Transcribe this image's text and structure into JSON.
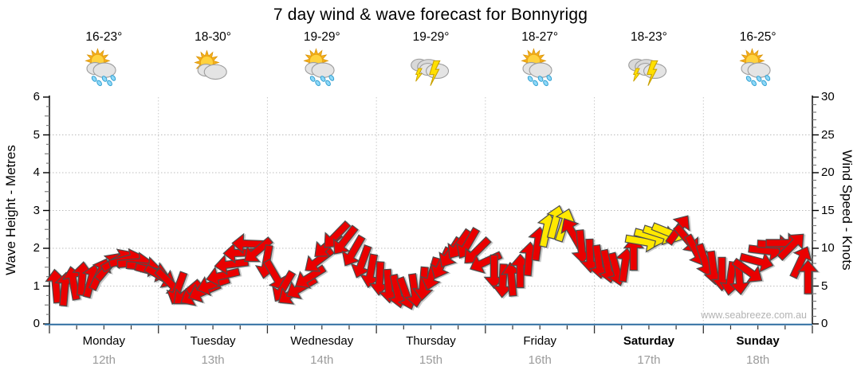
{
  "title": "7 day wind & wave forecast for Bonnyrigg",
  "watermark": "www.seabreeze.com.au",
  "left_axis": {
    "label": "Wave Height - Metres",
    "ticks": [
      "0",
      "1",
      "2",
      "3",
      "4",
      "5",
      "6"
    ]
  },
  "right_axis": {
    "label": "Wind Speed - Knots",
    "ticks": [
      "0",
      "5",
      "10",
      "15",
      "20",
      "25",
      "30"
    ]
  },
  "forecast_days": [
    {
      "name": "Monday",
      "date": "12th",
      "temp": "16-23°",
      "icon": "sun-cloud-rain",
      "bold": false
    },
    {
      "name": "Tuesday",
      "date": "13th",
      "temp": "18-30°",
      "icon": "sun-cloud",
      "bold": false
    },
    {
      "name": "Wednesday",
      "date": "14th",
      "temp": "19-29°",
      "icon": "sun-cloud-rain",
      "bold": false
    },
    {
      "name": "Thursday",
      "date": "15th",
      "temp": "19-29°",
      "icon": "storm",
      "bold": false
    },
    {
      "name": "Friday",
      "date": "16th",
      "temp": "18-27°",
      "icon": "sun-cloud-rain",
      "bold": false
    },
    {
      "name": "Saturday",
      "date": "17th",
      "temp": "18-23°",
      "icon": "storm",
      "bold": true
    },
    {
      "name": "Sunday",
      "date": "18th",
      "temp": "16-25°",
      "icon": "sun-cloud-rain",
      "bold": true
    }
  ],
  "colors": {
    "arrow_red": "#ea0000",
    "arrow_yellow": "#ffe800",
    "arrow_outline": "#4d4d4d",
    "bottom_axis_blue": "#2e6da0",
    "grid_gray": "#bcbcbc",
    "date_gray": "#9b9b9b",
    "watermark_gray": "#b3b3b3"
  },
  "chart_data": {
    "type": "scatter",
    "title": "7 day wind & wave forecast for Bonnyrigg",
    "x_categories": [
      "Monday 12th",
      "Tuesday 13th",
      "Wednesday 14th",
      "Thursday 15th",
      "Friday 16th",
      "Saturday 17th",
      "Sunday 18th"
    ],
    "y_left": {
      "label": "Wave Height - Metres",
      "range": [
        0,
        6
      ],
      "major_step": 1,
      "minor_step": 0.25
    },
    "y_right": {
      "label": "Wind Speed - Knots",
      "range": [
        0,
        30
      ],
      "major_step": 5,
      "minor_step": 1
    },
    "grid": true,
    "legend": "none",
    "series_note": "Wind speed/direction arrows; t_days is time from Monday 00:00 (0-7), dir_deg is compass direction arrow points (0=up/N, clockwise), color r=red (normal) y=yellow (stronger wind)",
    "wind_arrows": {
      "fields": [
        "t_days",
        "knots",
        "dir_deg",
        "color"
      ],
      "points": [
        [
          0.06,
          5.0,
          355,
          "r"
        ],
        [
          0.14,
          4.6,
          5,
          "r"
        ],
        [
          0.22,
          5.4,
          350,
          "r"
        ],
        [
          0.3,
          6.0,
          5,
          "r"
        ],
        [
          0.38,
          5.7,
          15,
          "r"
        ],
        [
          0.46,
          6.6,
          25,
          "r"
        ],
        [
          0.54,
          7.6,
          40,
          "r"
        ],
        [
          0.62,
          8.4,
          60,
          "r"
        ],
        [
          0.7,
          8.5,
          75,
          "r"
        ],
        [
          0.78,
          8.1,
          85,
          "r"
        ],
        [
          0.86,
          7.6,
          95,
          "r"
        ],
        [
          0.94,
          7.0,
          105,
          "r"
        ],
        [
          1.02,
          6.3,
          120,
          "r"
        ],
        [
          1.1,
          5.5,
          135,
          "r"
        ],
        [
          1.18,
          4.7,
          200,
          "r"
        ],
        [
          1.26,
          4.1,
          230,
          "r"
        ],
        [
          1.34,
          3.9,
          240,
          "r"
        ],
        [
          1.42,
          4.3,
          247,
          "r"
        ],
        [
          1.5,
          5.2,
          252,
          "r"
        ],
        [
          1.59,
          6.4,
          257,
          "r"
        ],
        [
          1.67,
          7.9,
          263,
          "r"
        ],
        [
          1.75,
          9.4,
          268,
          "r"
        ],
        [
          1.83,
          10.6,
          272,
          "r"
        ],
        [
          1.91,
          9.7,
          230,
          "r"
        ],
        [
          1.99,
          8.2,
          190,
          "r"
        ],
        [
          2.07,
          6.4,
          150,
          "r"
        ],
        [
          2.15,
          4.9,
          210,
          "r"
        ],
        [
          2.23,
          4.1,
          235,
          "r"
        ],
        [
          2.31,
          4.8,
          240,
          "r"
        ],
        [
          2.39,
          6.2,
          238,
          "r"
        ],
        [
          2.47,
          8.4,
          233,
          "r"
        ],
        [
          2.55,
          10.4,
          228,
          "r"
        ],
        [
          2.63,
          11.7,
          224,
          "r"
        ],
        [
          2.71,
          11.0,
          218,
          "r"
        ],
        [
          2.79,
          9.6,
          210,
          "r"
        ],
        [
          2.87,
          8.2,
          200,
          "r"
        ],
        [
          2.95,
          7.0,
          190,
          "r"
        ],
        [
          3.03,
          6.0,
          183,
          "r"
        ],
        [
          3.11,
          5.0,
          176,
          "r"
        ],
        [
          3.19,
          4.3,
          168,
          "r"
        ],
        [
          3.27,
          4.0,
          160,
          "r"
        ],
        [
          3.35,
          4.4,
          172,
          "r"
        ],
        [
          3.43,
          5.3,
          185,
          "r"
        ],
        [
          3.51,
          6.6,
          196,
          "r"
        ],
        [
          3.6,
          8.0,
          205,
          "r"
        ],
        [
          3.68,
          9.4,
          212,
          "r"
        ],
        [
          3.76,
          10.5,
          215,
          "r"
        ],
        [
          3.84,
          10.6,
          210,
          "r"
        ],
        [
          3.92,
          9.6,
          225,
          "r"
        ],
        [
          4.0,
          8.2,
          245,
          "r"
        ],
        [
          4.08,
          6.9,
          180,
          "r"
        ],
        [
          4.16,
          5.7,
          183,
          "r"
        ],
        [
          4.24,
          5.9,
          355,
          "r"
        ],
        [
          4.32,
          7.0,
          0,
          "r"
        ],
        [
          4.4,
          8.6,
          5,
          "r"
        ],
        [
          4.48,
          10.6,
          8,
          "r"
        ],
        [
          4.56,
          12.4,
          12,
          "y"
        ],
        [
          4.64,
          13.5,
          15,
          "y"
        ],
        [
          4.72,
          13.1,
          18,
          "y"
        ],
        [
          4.8,
          12.0,
          330,
          "r"
        ],
        [
          4.88,
          10.2,
          175,
          "r"
        ],
        [
          4.96,
          9.0,
          178,
          "r"
        ],
        [
          5.04,
          8.2,
          172,
          "r"
        ],
        [
          5.12,
          7.6,
          168,
          "r"
        ],
        [
          5.2,
          7.2,
          165,
          "r"
        ],
        [
          5.28,
          7.8,
          8,
          "r"
        ],
        [
          5.36,
          9.3,
          0,
          "r"
        ],
        [
          5.44,
          10.9,
          100,
          "y"
        ],
        [
          5.52,
          11.6,
          105,
          "y"
        ],
        [
          5.6,
          11.9,
          108,
          "y"
        ],
        [
          5.68,
          12.1,
          112,
          "y"
        ],
        [
          5.77,
          12.5,
          35,
          "r"
        ],
        [
          5.85,
          11.2,
          140,
          "r"
        ],
        [
          5.93,
          9.7,
          152,
          "r"
        ],
        [
          6.01,
          8.4,
          162,
          "r"
        ],
        [
          6.09,
          7.4,
          172,
          "r"
        ],
        [
          6.17,
          6.6,
          180,
          "r"
        ],
        [
          6.25,
          6.0,
          188,
          "r"
        ],
        [
          6.33,
          6.1,
          175,
          "r"
        ],
        [
          6.41,
          7.0,
          125,
          "r"
        ],
        [
          6.49,
          8.3,
          105,
          "r"
        ],
        [
          6.57,
          9.7,
          97,
          "r"
        ],
        [
          6.65,
          10.5,
          93,
          "r"
        ],
        [
          6.73,
          10.7,
          90,
          "r"
        ],
        [
          6.81,
          10.3,
          45,
          "r"
        ],
        [
          6.89,
          8.2,
          25,
          "r"
        ],
        [
          6.96,
          6.2,
          0,
          "r"
        ]
      ]
    }
  }
}
